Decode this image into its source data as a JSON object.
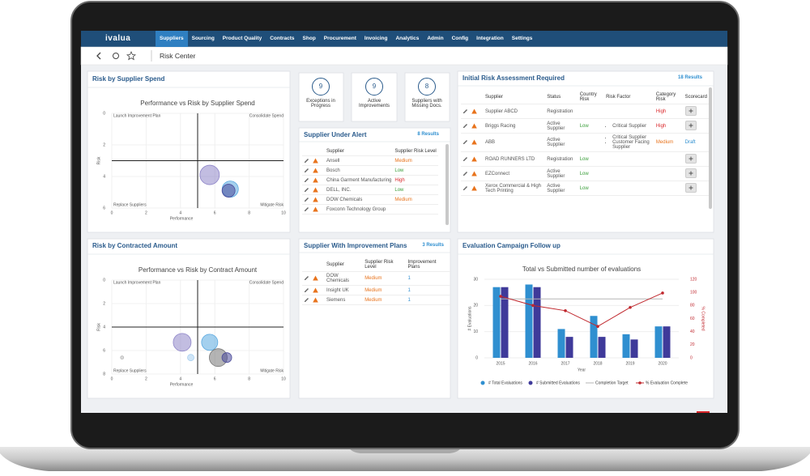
{
  "nav": {
    "logo": "ivalua",
    "items": [
      "Suppliers",
      "Sourcing",
      "Product Quality",
      "Contracts",
      "Shop",
      "Procurement",
      "Invoicing",
      "Analytics",
      "Admin",
      "Config",
      "Integration",
      "Settings"
    ]
  },
  "header": {
    "title": "Risk Center"
  },
  "kpis": [
    {
      "value": 9,
      "label": "Exceptions in Progress"
    },
    {
      "value": 9,
      "label": "Active Improvements"
    },
    {
      "value": 8,
      "label": "Suppliers with Missing Docs."
    }
  ],
  "level_colors": {
    "Medium": "#e8731c",
    "Low": "#3a9e3a",
    "High": "#d9262a",
    "Draft": "#2f8fd0"
  },
  "chart_data": [
    {
      "type": "scatter",
      "panel_title": "Risk by Supplier Spend",
      "title": "Performance vs Risk by Supplier Spend",
      "x_label": "Performance",
      "y_label": "Risk",
      "xlim": [
        0,
        10
      ],
      "ylim": [
        0,
        6
      ],
      "y_inverted": true,
      "xticks": [
        0,
        2,
        4,
        6,
        8,
        10
      ],
      "yticks": [
        0,
        2,
        4,
        6
      ],
      "divider": {
        "x": 5,
        "y": 3
      },
      "quadrant_labels": [
        "Launch Improvement Plan",
        "Consolidate Spend",
        "Replace Suppliers",
        "Mitigate Risk"
      ],
      "points": {
        "x": [
          5.7,
          6.9,
          6.8
        ],
        "values": [
          3.9,
          4.8,
          4.9
        ],
        "sizes": [
          12,
          10,
          8
        ],
        "colors": [
          "#8f86c9",
          "#5aa9e0",
          "#4a4a9a"
        ]
      }
    },
    {
      "type": "scatter",
      "panel_title": "Risk by Contracted Amount",
      "title": "Performance vs Risk by Contract Amount",
      "x_label": "Performance",
      "y_label": "Risk",
      "xlim": [
        0,
        10
      ],
      "ylim": [
        0,
        8
      ],
      "y_inverted": true,
      "xticks": [
        0,
        2,
        4,
        6,
        8,
        10
      ],
      "yticks": [
        0,
        2,
        4,
        6,
        8
      ],
      "divider": {
        "x": 5,
        "y": 4
      },
      "quadrant_labels": [
        "Launch Improvement Plan",
        "Consolidate Spend",
        "Replace Suppliers",
        "Mitigate Risk"
      ],
      "points": {
        "x": [
          0.6,
          4.1,
          5.7,
          4.6,
          6.2,
          6.7
        ],
        "values": [
          6.6,
          5.3,
          5.3,
          6.6,
          6.6,
          6.6
        ],
        "sizes": [
          2,
          11,
          10,
          4,
          11,
          6
        ],
        "colors": [
          "#bbbbbb",
          "#8f86c9",
          "#5aa9e0",
          "#a8d0f0",
          "#777777",
          "#4a4a9a"
        ]
      }
    },
    {
      "type": "bar-line",
      "panel_title": "Evaluation Campaign Follow up",
      "title": "Total vs Submitted number of evaluations",
      "x_label": "Year",
      "y_label": "# Evaluations",
      "y2_label": "% Completed",
      "categories": [
        "2015",
        "2016",
        "2017",
        "2018",
        "2019",
        "2020"
      ],
      "ylim": [
        0,
        30
      ],
      "yticks": [
        0,
        10,
        20,
        30
      ],
      "y2lim": [
        0,
        120
      ],
      "y2ticks": [
        0,
        20,
        40,
        60,
        80,
        100,
        120
      ],
      "series": [
        {
          "name": "# Total Evaluations",
          "type": "bar",
          "color": "#2f8fd0",
          "values": [
            27,
            28,
            11,
            16,
            9,
            12
          ]
        },
        {
          "name": "# Submitted Evaluations",
          "type": "bar",
          "color": "#3f3a9a",
          "values": [
            27,
            27,
            8,
            8,
            7,
            12
          ]
        },
        {
          "name": "Completion Target",
          "type": "line",
          "axis": "y2",
          "color": "#b5b5b5",
          "values": [
            90,
            90,
            90,
            90,
            90,
            90
          ]
        },
        {
          "name": "% Evaluation Complete",
          "type": "line",
          "axis": "y2",
          "color": "#c0282e",
          "markers": true,
          "values": [
            94,
            80,
            72,
            48,
            77,
            99
          ]
        }
      ]
    }
  ],
  "tables": {
    "alert": {
      "title": "Supplier Under Alert",
      "count": "8 Results",
      "columns": [
        "Supplier",
        "Supplier Risk Level"
      ],
      "rows": [
        [
          "Ansell",
          "Medium"
        ],
        [
          "Bosch",
          "Low"
        ],
        [
          "China Garment Manufacturing",
          "High"
        ],
        [
          "DELL, INC.",
          "Low"
        ],
        [
          "DOW Chemicals",
          "Medium"
        ],
        [
          "Foxconn Technology Group",
          null
        ]
      ]
    },
    "improvement": {
      "title": "Supplier With Improvement Plans",
      "count": "3 Results",
      "columns": [
        "Supplier",
        "Supplier Risk Level",
        "Improvement Plans"
      ],
      "rows": [
        [
          "DOW Chemicals",
          "Medium",
          1
        ],
        [
          "Insight UK",
          "Medium",
          1
        ],
        [
          "Siemens",
          "Medium",
          1
        ]
      ]
    },
    "assessment": {
      "title": "Initial Risk Assessment Required",
      "count": "18 Results",
      "columns": [
        "Supplier",
        "Status",
        "Country Risk",
        "Risk Factor",
        "Category Risk",
        "Scorecard"
      ],
      "rows": [
        [
          "Supplier ABCD",
          "Registration",
          null,
          null,
          "High",
          null
        ],
        [
          "Briggs Racing",
          "Active Supplier",
          "Low",
          [
            "Critical Supplier"
          ],
          "High",
          null
        ],
        [
          "ABB",
          "Active Supplier",
          null,
          [
            "Critical Supplier",
            "Customer Facing Supplier"
          ],
          "Medium",
          "Draft"
        ],
        [
          "ROAD RUNNERS LTD",
          "Registration",
          "Low",
          null,
          null,
          null
        ],
        [
          "EZConnect",
          "Active Supplier",
          "Low",
          null,
          null,
          null
        ],
        [
          "Xerox Commercial & High Tech Printing",
          "Active Supplier",
          "Low",
          null,
          null,
          null
        ]
      ]
    }
  }
}
